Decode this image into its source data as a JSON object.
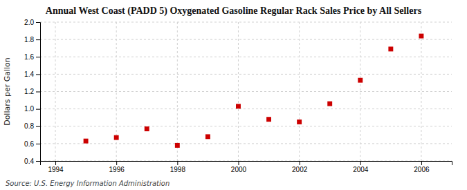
{
  "chart_data": {
    "type": "scatter",
    "title": "Annual West Coast (PADD 5) Oxygenated Gasoline Regular Rack Sales Price by All Sellers",
    "ylabel": "Dollars per Gallon",
    "source": "Source: U.S. Energy Information Administration",
    "x": [
      1995,
      1996,
      1997,
      1998,
      1999,
      2000,
      2001,
      2002,
      2003,
      2004,
      2005,
      2006
    ],
    "values": [
      0.63,
      0.67,
      0.77,
      0.58,
      0.68,
      1.03,
      0.88,
      0.85,
      1.06,
      1.33,
      1.69,
      1.84
    ],
    "xlim": [
      1993.5,
      2007.0
    ],
    "ylim": [
      0.4,
      2.0
    ],
    "xticks": [
      1994,
      1996,
      1998,
      2000,
      2002,
      2004,
      2006
    ],
    "yticks": [
      0.4,
      0.6,
      0.8,
      {
        "value": 1.0,
        "label": "1.0"
      },
      1.2,
      1.4,
      1.6,
      1.8,
      {
        "value": 2.0,
        "label": "2.0"
      }
    ],
    "color": "#cc0000",
    "marker": "square",
    "grid": true
  }
}
